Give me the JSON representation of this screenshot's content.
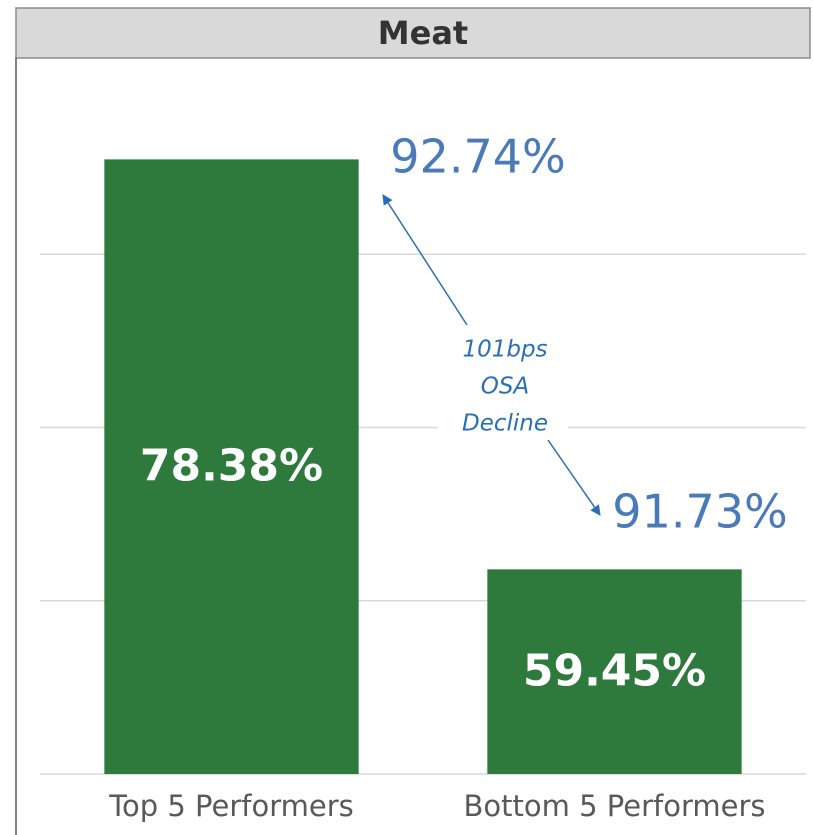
{
  "chart_data": {
    "type": "bar",
    "title": "Meat",
    "categories": [
      "Top 5 Performers",
      "Bottom 5 Performers"
    ],
    "values": [
      78.38,
      59.45
    ],
    "value_labels": [
      "78.38%",
      "59.45%"
    ],
    "color": "#2e7a3c",
    "ylim": [
      50,
      82
    ],
    "yticks": [
      50,
      58,
      66,
      74
    ],
    "grid": true,
    "annotations": [
      "92.74%",
      "91.73%"
    ],
    "note_lines": [
      "101bps",
      "OSA",
      "Decline"
    ]
  }
}
